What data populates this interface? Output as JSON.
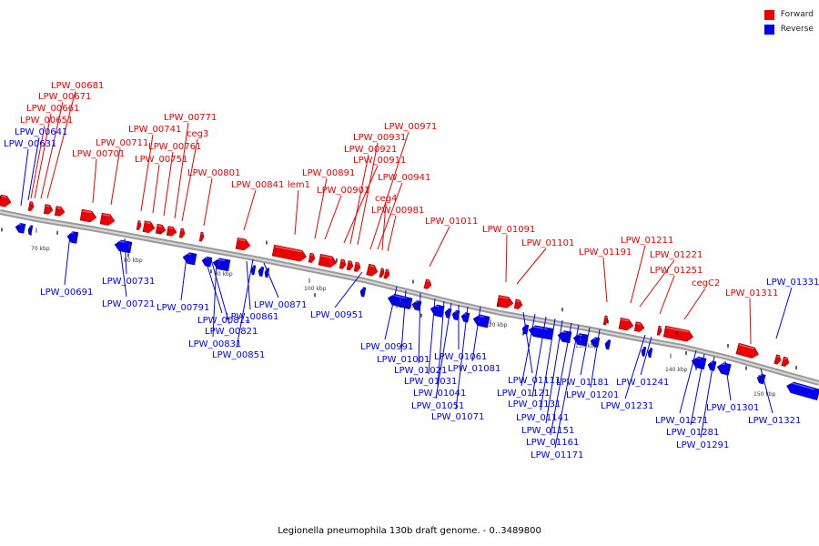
{
  "title": "Legionella pneumophila 130b draft genome. - 0..3489800",
  "legend": [
    {
      "label": "Forward",
      "color": "#ee0000"
    },
    {
      "label": "Reverse",
      "color": "#0000ee"
    }
  ],
  "colors": {
    "forward": "#ee0000",
    "reverse": "#0000ee"
  },
  "ticks": [
    "70 kbp",
    "80 kbp",
    "90 kbp",
    "100 kbp",
    "110 kbp",
    "120 kbp",
    "130 kbp",
    "140 kbp",
    "150 kbp"
  ],
  "forward_labels": [
    "LPW_00681",
    "LPW_00671",
    "LPW_00661",
    "LPW_00651",
    "LPW_00701",
    "LPW_00711",
    "LPW_00741",
    "LPW_00751",
    "LPW_00761",
    "LPW_00771",
    "ceg3",
    "LPW_00801",
    "LPW_00841",
    "lem1",
    "LPW_00891",
    "LPW_00901",
    "LPW_00911",
    "LPW_00921",
    "LPW_00931",
    "LPW_00971",
    "LPW_00941",
    "ceg4",
    "LPW_00981",
    "LPW_01011",
    "LPW_01091",
    "LPW_01101",
    "LPW_01191",
    "LPW_01211",
    "LPW_01221",
    "LPW_01251",
    "cegC2",
    "LPW_01311"
  ],
  "reverse_labels": [
    "LPW_00641",
    "LPW_00631",
    "LPW_00691",
    "LPW_00721",
    "LPW_00731",
    "LPW_00791",
    "LPW_00811",
    "LPW_00821",
    "LPW_00831",
    "LPW_00851",
    "LPW_00861",
    "LPW_00871",
    "LPW_00951",
    "LPW_00991",
    "LPW_01001",
    "LPW_01021",
    "LPW_01031",
    "LPW_01041",
    "LPW_01051",
    "LPW_01061",
    "LPW_01071",
    "LPW_01081",
    "LPW_01111",
    "LPW_01121",
    "LPW_01131",
    "LPW_01141",
    "LPW_01151",
    "LPW_01161",
    "LPW_01171",
    "LPW_01181",
    "LPW_01201",
    "LPW_01231",
    "LPW_01241",
    "LPW_01271",
    "LPW_01281",
    "LPW_01291",
    "LPW_01301",
    "LPW_01321",
    "LPW_01331"
  ]
}
